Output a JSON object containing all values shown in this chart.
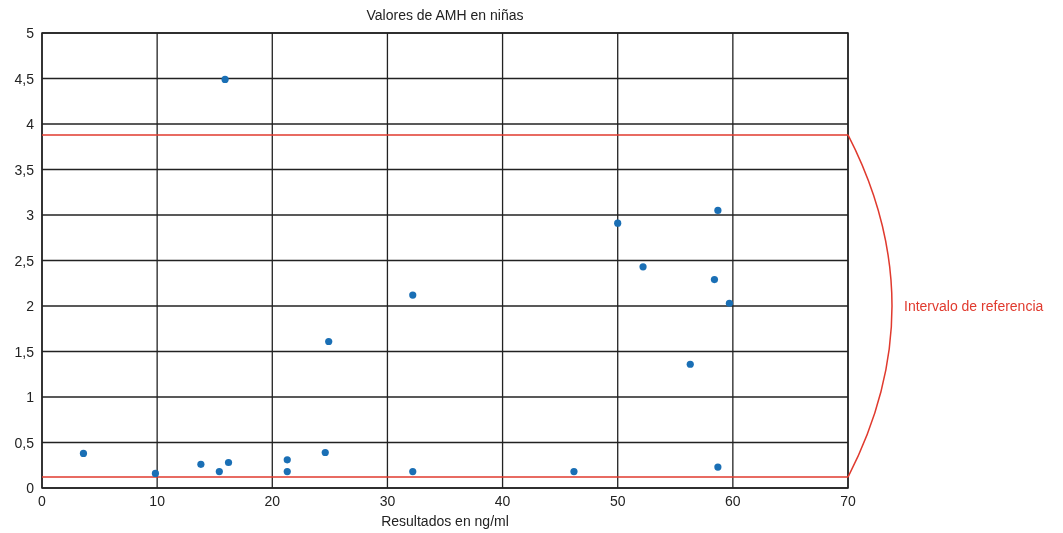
{
  "chart_data": {
    "type": "scatter",
    "title": "Valores de AMH en niñas",
    "xlabel": "Resultados en ng/ml",
    "x": [
      3.6,
      9.85,
      13.8,
      15.4,
      16.2,
      21.3,
      21.3,
      24.6,
      24.9,
      32.2,
      32.2,
      15.9,
      50.0,
      58.7,
      52.2,
      58.4,
      59.7,
      56.3,
      46.2,
      58.7
    ],
    "series": [
      {
        "color": "#1a6fb5",
        "values": [
          0.38,
          0.16,
          0.26,
          0.18,
          0.28,
          0.31,
          0.18,
          0.39,
          1.61,
          2.12,
          0.18,
          4.49,
          2.91,
          3.05,
          2.43,
          2.29,
          2.03,
          1.36,
          0.18,
          0.23
        ]
      }
    ],
    "xlim": [
      0,
      70
    ],
    "xticks": [
      0,
      10,
      20,
      30,
      40,
      50,
      60,
      70
    ],
    "ylim": [
      0,
      5
    ],
    "yticks": [
      0,
      {
        "value": 0.5,
        "label": "0,5"
      },
      1,
      {
        "value": 1.5,
        "label": "1,5"
      },
      2,
      {
        "value": 2.5,
        "label": "2,5"
      },
      3,
      {
        "value": 3.5,
        "label": "3,5"
      },
      4,
      {
        "value": 4.5,
        "label": "4,5"
      },
      5
    ],
    "grid": true,
    "marker": "circle",
    "ref_lines": [
      {
        "axis": "y",
        "value": 3.88,
        "color": "#e03a2e"
      },
      {
        "axis": "y",
        "value": 0.12,
        "color": "#e03a2e"
      }
    ],
    "annotations": [
      "Intervalo de referencia"
    ]
  }
}
